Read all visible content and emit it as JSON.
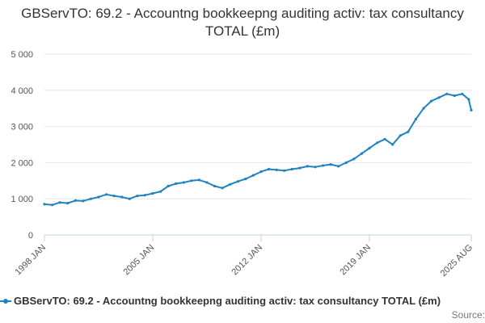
{
  "chart_data": {
    "type": "line",
    "title": "GBServTO: 69.2 - Accountng bookkeepng auditing activ: tax consultancy TOTAL (£m)",
    "legend_position": "bottom",
    "grid": true,
    "ylim": [
      0,
      5000
    ],
    "yticks": [
      0,
      1000,
      2000,
      3000,
      4000,
      5000
    ],
    "ytick_labels": [
      "0",
      "1 000",
      "2 000",
      "3 000",
      "4 000",
      "5 000"
    ],
    "xlim": [
      "1998-01",
      "2025-08"
    ],
    "xticks": [
      "1998-01",
      "2005-01",
      "2012-01",
      "2019-01",
      "2025-08"
    ],
    "xtick_labels": [
      "1998 JAN",
      "2005 JAN",
      "2012 JAN",
      "2019 JAN",
      "2025 AUG"
    ],
    "series": [
      {
        "name": "GBServTO: 69.2 - Accountng bookkeepng auditing activ: tax consultancy TOTAL (£m)",
        "color": "#1f83c2",
        "points": [
          [
            "1998-01",
            850
          ],
          [
            "1998-07",
            830
          ],
          [
            "1999-01",
            900
          ],
          [
            "1999-07",
            880
          ],
          [
            "2000-01",
            950
          ],
          [
            "2000-07",
            940
          ],
          [
            "2001-01",
            1000
          ],
          [
            "2001-07",
            1050
          ],
          [
            "2002-01",
            1120
          ],
          [
            "2002-07",
            1080
          ],
          [
            "2003-01",
            1050
          ],
          [
            "2003-07",
            1000
          ],
          [
            "2004-01",
            1080
          ],
          [
            "2004-07",
            1100
          ],
          [
            "2005-01",
            1150
          ],
          [
            "2005-07",
            1200
          ],
          [
            "2006-01",
            1350
          ],
          [
            "2006-07",
            1420
          ],
          [
            "2007-01",
            1450
          ],
          [
            "2007-07",
            1500
          ],
          [
            "2008-01",
            1520
          ],
          [
            "2008-07",
            1450
          ],
          [
            "2009-01",
            1350
          ],
          [
            "2009-07",
            1300
          ],
          [
            "2010-01",
            1400
          ],
          [
            "2010-07",
            1480
          ],
          [
            "2011-01",
            1550
          ],
          [
            "2011-07",
            1650
          ],
          [
            "2012-01",
            1750
          ],
          [
            "2012-07",
            1820
          ],
          [
            "2013-01",
            1800
          ],
          [
            "2013-07",
            1780
          ],
          [
            "2014-01",
            1820
          ],
          [
            "2014-07",
            1850
          ],
          [
            "2015-01",
            1900
          ],
          [
            "2015-07",
            1880
          ],
          [
            "2016-01",
            1920
          ],
          [
            "2016-07",
            1950
          ],
          [
            "2017-01",
            1900
          ],
          [
            "2017-07",
            2000
          ],
          [
            "2018-01",
            2100
          ],
          [
            "2018-07",
            2250
          ],
          [
            "2019-01",
            2400
          ],
          [
            "2019-07",
            2550
          ],
          [
            "2020-01",
            2650
          ],
          [
            "2020-07",
            2500
          ],
          [
            "2021-01",
            2750
          ],
          [
            "2021-07",
            2850
          ],
          [
            "2022-01",
            3200
          ],
          [
            "2022-07",
            3500
          ],
          [
            "2023-01",
            3700
          ],
          [
            "2023-07",
            3800
          ],
          [
            "2024-01",
            3900
          ],
          [
            "2024-07",
            3850
          ],
          [
            "2025-01",
            3900
          ],
          [
            "2025-06",
            3750
          ],
          [
            "2025-08",
            3450
          ]
        ]
      }
    ]
  },
  "source_label": "Source:"
}
